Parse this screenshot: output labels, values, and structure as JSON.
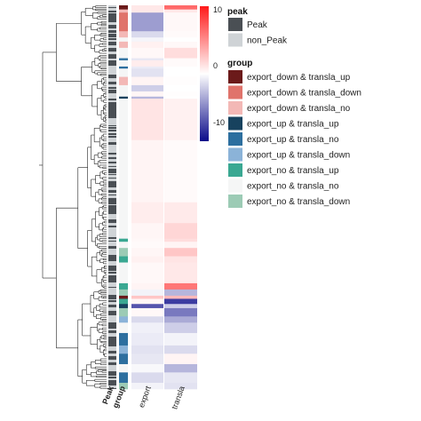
{
  "chart_data": {
    "type": "heatmap",
    "title": "",
    "columns": [
      "export",
      "transla"
    ],
    "annotation_columns": [
      "Peak",
      "group"
    ],
    "color_scale": {
      "min": -10,
      "max": 10,
      "ticks": [
        10,
        0,
        -10
      ],
      "low_color": "#0b0b8a",
      "mid_color": "#ffffff",
      "high_color": "#ff1a1a"
    },
    "legends": [
      {
        "title": "peak",
        "items": [
          {
            "label": "Peak",
            "color": "#4a4f54"
          },
          {
            "label": "non_Peak",
            "color": "#cfd3d6"
          }
        ]
      },
      {
        "title": "group",
        "items": [
          {
            "label": "export_down & transla_up",
            "color": "#6b1a1a"
          },
          {
            "label": "export_down & transla_down",
            "color": "#e0736b"
          },
          {
            "label": "export_down & transla_no",
            "color": "#f3b8b6"
          },
          {
            "label": "export_up & transla_up",
            "color": "#17425e"
          },
          {
            "label": "export_up & transla_no",
            "color": "#2d6f9f"
          },
          {
            "label": "export_up & transla_down",
            "color": "#8bb3d8"
          },
          {
            "label": "export_no & transla_up",
            "color": "#3aa892"
          },
          {
            "label": "export_no & transla_no",
            "color": "#f5f6f6"
          },
          {
            "label": "export_no & transla_down",
            "color": "#9ccbb5"
          }
        ]
      }
    ],
    "row_blocks": [
      {
        "rows": 4,
        "group": "export_down & transla_up",
        "export": 1.0,
        "transla": 6.5
      },
      {
        "rows": 3,
        "group": "export_down & transla_no",
        "export": 1.0,
        "transla": 1.0
      },
      {
        "rows": 18,
        "group": "export_down & transla_down",
        "export": -4.0,
        "transla": 0.3
      },
      {
        "rows": 6,
        "group": "export_down & transla_no",
        "export": -1.5,
        "transla": 0.2
      },
      {
        "rows": 4,
        "group": "export_no & transla_no",
        "export": -0.4,
        "transla": 0.0
      },
      {
        "rows": 6,
        "group": "export_down & transla_no",
        "export": 0.6,
        "transla": 0.3
      },
      {
        "rows": 10,
        "group": "export_no & transla_no",
        "export": 0.3,
        "transla": 1.5
      },
      {
        "rows": 2,
        "group": "export_up & transla_no",
        "export": -1.0,
        "transla": 0.2
      },
      {
        "rows": 6,
        "group": "export_no & transla_no",
        "export": 0.8,
        "transla": 0.2
      },
      {
        "rows": 2,
        "group": "export_up & transla_no",
        "export": -0.8,
        "transla": 0.0
      },
      {
        "rows": 8,
        "group": "export_no & transla_no",
        "export": -1.2,
        "transla": 0.0
      },
      {
        "rows": 8,
        "group": "export_down & transla_no",
        "export": 0.5,
        "transla": 0.1
      },
      {
        "rows": 6,
        "group": "export_no & transla_no",
        "export": -2.0,
        "transla": 0.0
      },
      {
        "rows": 5,
        "group": "export_no & transla_no",
        "export": 0.4,
        "transla": 0.1
      },
      {
        "rows": 2,
        "group": "export_up & transla_up",
        "export": -3.0,
        "transla": 0.0
      },
      {
        "rows": 40,
        "group": "export_no & transla_no",
        "export": 1.2,
        "transla": 0.6
      },
      {
        "rows": 60,
        "group": "export_no & transla_no",
        "export": 0.5,
        "transla": 0.2
      },
      {
        "rows": 20,
        "group": "export_no & transla_no",
        "export": 0.8,
        "transla": 0.9
      },
      {
        "rows": 15,
        "group": "export_no & transla_no",
        "export": 0.4,
        "transla": 1.8
      },
      {
        "rows": 3,
        "group": "export_no & transla_up",
        "export": 0.3,
        "transla": 1.5
      },
      {
        "rows": 6,
        "group": "export_no & transla_no",
        "export": 0.2,
        "transla": 0.5
      },
      {
        "rows": 8,
        "group": "export_no & transla_down",
        "export": 0.4,
        "transla": 2.5
      },
      {
        "rows": 6,
        "group": "export_no & transla_up",
        "export": 0.6,
        "transla": 1.2
      },
      {
        "rows": 20,
        "group": "export_no & transla_no",
        "export": 0.3,
        "transla": 1.0
      },
      {
        "rows": 6,
        "group": "export_no & transla_up",
        "export": 0.5,
        "transla": 6.0
      },
      {
        "rows": 6,
        "group": "export_no & transla_down",
        "export": -0.5,
        "transla": -3.0
      },
      {
        "rows": 3,
        "group": "export_down & transla_up",
        "export": 2.5,
        "transla": 3.0
      },
      {
        "rows": 5,
        "group": "export_no & transla_up",
        "export": 0.4,
        "transla": -8.0
      },
      {
        "rows": 4,
        "group": "export_up & transla_up",
        "export": -7.0,
        "transla": -2.0
      },
      {
        "rows": 8,
        "group": "export_no & transla_down",
        "export": 0.3,
        "transla": -5.5
      },
      {
        "rows": 6,
        "group": "export_up & transla_down",
        "export": -1.5,
        "transla": -3.5
      },
      {
        "rows": 10,
        "group": "export_no & transla_no",
        "export": -0.6,
        "transla": -2.0
      },
      {
        "rows": 12,
        "group": "export_up & transla_no",
        "export": -0.8,
        "transla": -0.5
      },
      {
        "rows": 8,
        "group": "export_up & transla_down",
        "export": -1.2,
        "transla": -1.5
      },
      {
        "rows": 10,
        "group": "export_up & transla_no",
        "export": -1.0,
        "transla": 0.5
      },
      {
        "rows": 8,
        "group": "export_no & transla_no",
        "export": -0.3,
        "transla": -3.0
      },
      {
        "rows": 10,
        "group": "export_up & transla_no",
        "export": -1.5,
        "transla": -1.0
      },
      {
        "rows": 6,
        "group": "export_no & transla_down",
        "export": -0.5,
        "transla": -1.2
      }
    ]
  }
}
